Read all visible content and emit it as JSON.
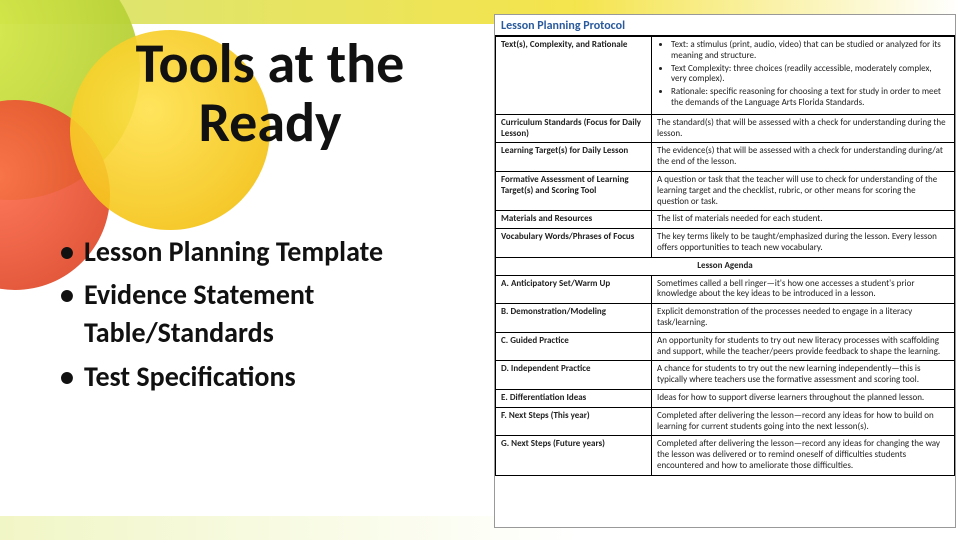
{
  "colors": {
    "accent_blue": "#2a5a9c",
    "border": "#000000",
    "bg_green": "#a9c62e",
    "bg_yellow": "#f0b800",
    "bg_red": "#d63a1a"
  },
  "title": "Tools at the Ready",
  "bullets": [
    "Lesson Planning Template",
    "Evidence Statement Table/Standards",
    "Test Specifications"
  ],
  "doc": {
    "heading": "Lesson Planning Protocol",
    "rows": [
      {
        "label": "Text(s), Complexity, and Rationale",
        "desc_list": [
          "Text: a stimulus (print, audio, video) that can be studied or analyzed for its meaning and structure.",
          "Text Complexity: three choices (readily accessible, moderately complex, very complex).",
          "Rationale: specific reasoning for choosing a text for study in order to meet the demands of the Language Arts Florida Standards."
        ]
      },
      {
        "label": "Curriculum Standards (Focus for Daily Lesson)",
        "desc": "The standard(s) that will be assessed with a check for understanding during the lesson."
      },
      {
        "label": "Learning Target(s) for Daily Lesson",
        "desc": "The evidence(s) that will be assessed with a check for understanding during/at the end of the lesson."
      },
      {
        "label": "Formative Assessment of Learning Target(s) and Scoring Tool",
        "desc": "A question or task that the teacher will use to check for understanding of the learning target and the checklist, rubric, or other means for scoring the question or task."
      },
      {
        "label": "Materials and Resources",
        "desc": "The list of materials needed for each student."
      },
      {
        "label": "Vocabulary Words/Phrases of Focus",
        "desc": "The key terms likely to be taught/emphasized during the lesson. Every lesson offers opportunities to teach new vocabulary."
      }
    ],
    "agenda_heading": "Lesson Agenda",
    "agenda_rows": [
      {
        "label": "A. Anticipatory Set/Warm Up",
        "desc": "Sometimes called a bell ringer—it's how one accesses a student's prior knowledge about the key ideas to be introduced in a lesson."
      },
      {
        "label": "B. Demonstration/Modeling",
        "desc": "Explicit demonstration of the processes needed to engage in a literacy task/learning."
      },
      {
        "label": "C. Guided Practice",
        "desc": "An opportunity for students to try out new literacy processes with scaffolding and support, while the teacher/peers provide feedback to shape the learning."
      },
      {
        "label": "D. Independent Practice",
        "desc": "A chance for students to try out the new learning independently—this is typically where teachers use the formative assessment and scoring tool."
      },
      {
        "label": "E. Differentiation Ideas",
        "desc": "Ideas for how to support diverse learners throughout the planned lesson."
      },
      {
        "label": "F. Next Steps (This year)",
        "desc": "Completed after delivering the lesson—record any ideas for how to build on learning for current students going into the next lesson(s)."
      },
      {
        "label": "G. Next Steps (Future years)",
        "desc": "Completed after delivering the lesson—record any ideas for changing the way the lesson was delivered or to remind oneself of difficulties students encountered and how to ameliorate those difficulties."
      }
    ]
  }
}
